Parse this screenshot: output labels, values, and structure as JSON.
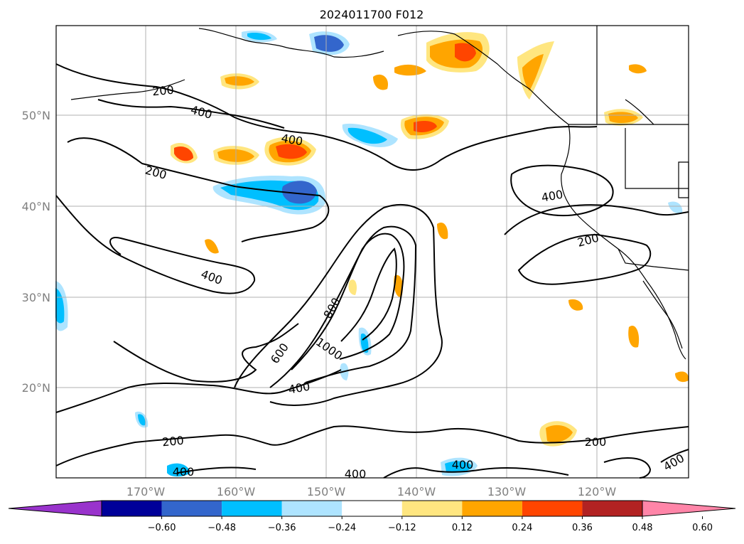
{
  "title": "2024011700 F012",
  "lon_labels": [
    "170°W",
    "160°W",
    "150°W",
    "140°W",
    "130°W",
    "120°W"
  ],
  "lat_labels": [
    "50°N",
    "40°N",
    "30°N",
    "20°N"
  ],
  "colorbar": {
    "colors": [
      "#9933cc",
      "#000099",
      "#3366cc",
      "#00bfff",
      "#aee4ff",
      "#ffffff",
      "#ffe680",
      "#ffa500",
      "#ff4500",
      "#b22222",
      "#ff85a8"
    ],
    "tick_labels": [
      "−0.60",
      "−0.48",
      "−0.36",
      "−0.24",
      "−0.12",
      "0.12",
      "0.24",
      "0.36",
      "0.48",
      "0.60"
    ]
  },
  "contour_labels": [
    "200",
    "400",
    "400",
    "200",
    "400",
    "800",
    "1000",
    "600",
    "400",
    "400",
    "400",
    "200",
    "200",
    "200",
    "400",
    "400",
    "400"
  ]
}
